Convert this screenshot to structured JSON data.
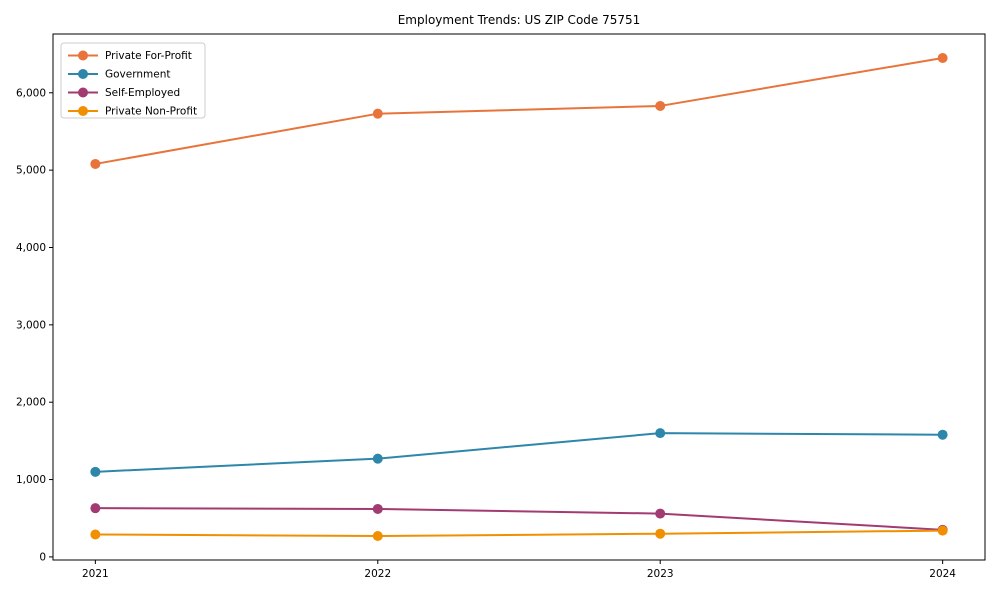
{
  "title": "Employment Trends: US ZIP Code 75751",
  "chart_data": {
    "type": "line",
    "title": "Employment Trends: US ZIP Code 75751",
    "x": [
      2021,
      2022,
      2023,
      2024
    ],
    "x_tick_labels": [
      "2021",
      "2022",
      "2023",
      "2024"
    ],
    "y_ticks": [
      0,
      1000,
      2000,
      3000,
      4000,
      5000,
      6000
    ],
    "y_tick_labels": [
      "0",
      "1,000",
      "2,000",
      "3,000",
      "4,000",
      "5,000",
      "6,000"
    ],
    "xlim": [
      2020.85,
      2024.15
    ],
    "ylim": [
      -40,
      6760
    ],
    "grid": false,
    "legend_position": "upper-left",
    "marker": "circle",
    "background_color": "#ffffff",
    "axis_color": "#000000",
    "series": [
      {
        "name": "Private For-Profit",
        "color": "#E8743B",
        "values": [
          5080,
          5730,
          5830,
          6450
        ]
      },
      {
        "name": "Government",
        "color": "#2E86AB",
        "values": [
          1100,
          1270,
          1600,
          1580
        ]
      },
      {
        "name": "Self-Employed",
        "color": "#A23B72",
        "values": [
          630,
          620,
          560,
          350
        ]
      },
      {
        "name": "Private Non-Profit",
        "color": "#F18F01",
        "values": [
          290,
          270,
          300,
          340
        ]
      }
    ]
  }
}
